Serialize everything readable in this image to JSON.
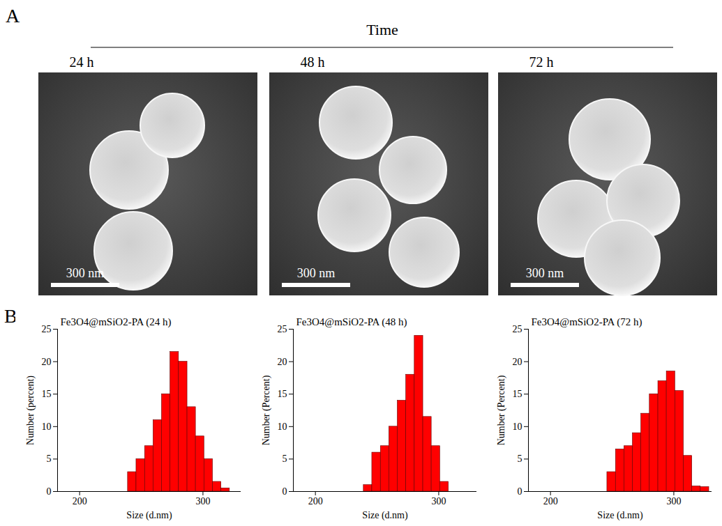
{
  "panels": {
    "A": {
      "letter": "A",
      "heading": "Time",
      "images": [
        {
          "label": "24 h",
          "scale_bar": "300 nm"
        },
        {
          "label": "48 h",
          "scale_bar": "300 nm"
        },
        {
          "label": "72 h",
          "scale_bar": "300 nm"
        }
      ]
    },
    "B": {
      "letter": "B"
    }
  },
  "chart_data": [
    {
      "type": "histogram",
      "title": "Fe3O4@mSiO2-PA (24 h)",
      "x_label": "Size (d.nm)",
      "y_label": "Number (percent)",
      "bins": [
        234.4,
        241.0,
        247.9,
        254.9,
        262.1,
        269.5,
        277.1,
        285.0,
        293.0,
        301.3,
        309.9,
        318.6,
        327.6
      ],
      "counts": [
        3,
        5,
        7,
        11,
        15,
        21.5,
        20,
        13,
        8.5,
        5,
        1.5,
        0.5
      ],
      "color": "#ff0000",
      "xlim": [
        186,
        340
      ],
      "xticks": [
        200,
        300
      ],
      "ylim": [
        0,
        25
      ],
      "yticks": [
        0,
        5,
        10,
        15,
        20,
        25
      ],
      "log": "x"
    },
    {
      "type": "histogram",
      "title": "Fe3O4@mSiO2-PA (48 h)",
      "x_label": "Size (d.nm)",
      "y_label": "Number (Percent)",
      "bins": [
        234.4,
        241.0,
        247.9,
        254.9,
        262.1,
        269.5,
        277.1,
        285.0,
        293.0,
        301.3,
        309.9
      ],
      "counts": [
        1,
        6,
        7,
        10,
        14,
        18,
        24,
        11.5,
        7,
        1.5
      ],
      "color": "#ff0000",
      "xlim": [
        186,
        340
      ],
      "xticks": [
        200,
        300
      ],
      "ylim": [
        0,
        25
      ],
      "yticks": [
        0,
        5,
        10,
        15,
        20,
        25
      ],
      "log": "x"
    },
    {
      "type": "histogram",
      "title": "Fe3O4@mSiO2-PA (72 h)",
      "x_label": "Size (d.nm)",
      "y_label": "Number (Percent)",
      "bins": [
        241.0,
        247.9,
        254.9,
        262.1,
        269.5,
        277.1,
        285.0,
        293.0,
        301.3,
        309.9,
        318.6,
        327.6,
        336.9
      ],
      "counts": [
        3,
        6.5,
        7,
        9,
        12,
        15,
        17,
        18.5,
        15.5,
        5.5,
        0.8,
        0.7
      ],
      "color": "#ff0000",
      "xlim": [
        186,
        340
      ],
      "xticks": [
        200,
        300
      ],
      "ylim": [
        0,
        25
      ],
      "yticks": [
        0,
        5,
        10,
        15,
        20,
        25
      ],
      "log": "x"
    }
  ]
}
